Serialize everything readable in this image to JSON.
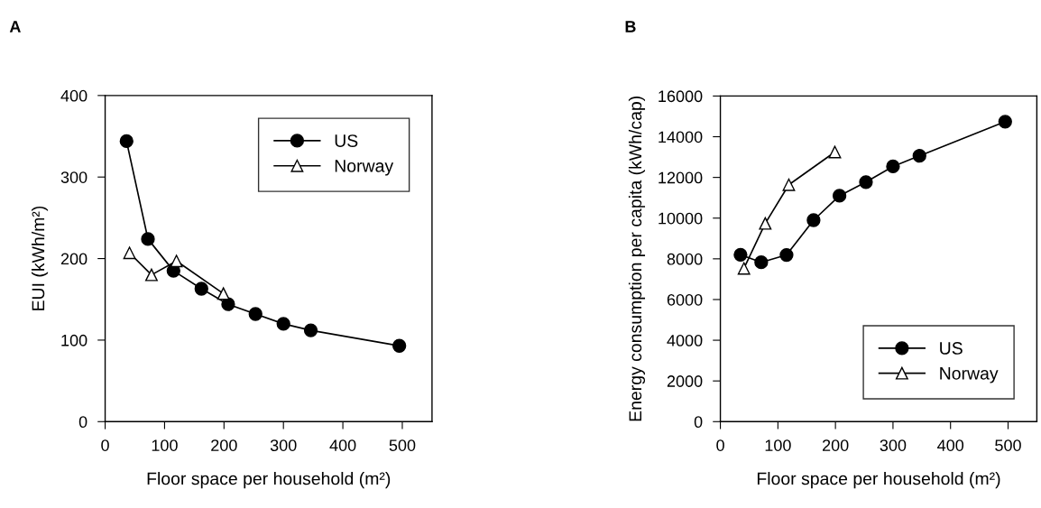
{
  "chart_data": [
    {
      "type": "line",
      "title": "A",
      "xlabel": "Floor space per household (m²)",
      "ylabel": "EUI (kWh/m²)",
      "xlim": [
        0,
        550
      ],
      "ylim": [
        0,
        400
      ],
      "xticks": [
        0,
        100,
        200,
        300,
        400,
        500
      ],
      "yticks": [
        0,
        100,
        200,
        300,
        400
      ],
      "legend": "top right",
      "grid": false,
      "series": [
        {
          "name": "US",
          "color": "#000000",
          "marker": "circle",
          "x": [
            36,
            72,
            115,
            162,
            207,
            253,
            300,
            346,
            495
          ],
          "values": [
            344,
            224,
            185,
            163,
            144,
            132,
            120,
            112,
            93
          ]
        },
        {
          "name": "Norway",
          "color": "#000000",
          "marker": "triangle",
          "x": [
            41,
            78,
            120,
            199
          ],
          "values": [
            207,
            180,
            197,
            157
          ]
        }
      ]
    },
    {
      "type": "line",
      "title": "B",
      "xlabel": "Floor space per household (m²)",
      "ylabel": "Energy consumption per capita (kWh/cap)",
      "xlim": [
        0,
        550
      ],
      "ylim": [
        0,
        16000
      ],
      "xticks": [
        0,
        100,
        200,
        300,
        400,
        500
      ],
      "yticks": [
        0,
        2000,
        4000,
        6000,
        8000,
        10000,
        12000,
        14000,
        16000
      ],
      "legend": "bottom right",
      "grid": false,
      "series": [
        {
          "name": "US",
          "color": "#000000",
          "marker": "circle",
          "x": [
            35,
            71,
            115,
            162,
            207,
            253,
            300,
            346,
            495
          ],
          "values": [
            8200,
            7830,
            8190,
            9900,
            11100,
            11770,
            12540,
            13060,
            14740
          ]
        },
        {
          "name": "Norway",
          "color": "#000000",
          "marker": "triangle",
          "x": [
            41,
            78,
            119,
            199
          ],
          "values": [
            7530,
            9740,
            11640,
            13250
          ]
        }
      ]
    }
  ]
}
